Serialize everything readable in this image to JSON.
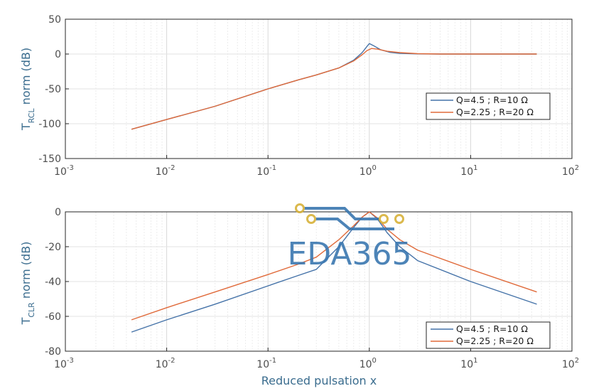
{
  "watermark": {
    "text": "EDA365"
  },
  "chart_data": [
    {
      "type": "line",
      "xscale": "log",
      "xlim": [
        0.001,
        100
      ],
      "ylim": [
        -150,
        50
      ],
      "ylabel": {
        "main": "T",
        "sub": "RCL",
        "rest": " norm (dB)"
      },
      "xlabel": "",
      "grid": true,
      "legend": "right",
      "yticks": [
        "50",
        "0",
        "-50",
        "-100",
        "-150"
      ],
      "xticks": [
        {
          "base": "10",
          "exp": "-3"
        },
        {
          "base": "10",
          "exp": "-2"
        },
        {
          "base": "10",
          "exp": "-1"
        },
        {
          "base": "10",
          "exp": "0"
        },
        {
          "base": "10",
          "exp": "1"
        },
        {
          "base": "10",
          "exp": "2"
        }
      ],
      "series": [
        {
          "name": "Q=4.5 ; R=10 Ω",
          "color": "#4472a8",
          "points": [
            [
              0.0045,
              -108
            ],
            [
              0.01,
              -94
            ],
            [
              0.03,
              -75
            ],
            [
              0.1,
              -50
            ],
            [
              0.2,
              -37
            ],
            [
              0.3,
              -30
            ],
            [
              0.5,
              -20
            ],
            [
              0.7,
              -9
            ],
            [
              0.85,
              2
            ],
            [
              0.95,
              11
            ],
            [
              1.0,
              15
            ],
            [
              1.1,
              12
            ],
            [
              1.3,
              6
            ],
            [
              1.6,
              2.5
            ],
            [
              2,
              1
            ],
            [
              3,
              0.2
            ],
            [
              5,
              0
            ],
            [
              10,
              0
            ],
            [
              45,
              0
            ]
          ]
        },
        {
          "name": "Q=2.25 ; R=20 Ω",
          "color": "#e06a3a",
          "points": [
            [
              0.0045,
              -108
            ],
            [
              0.01,
              -94
            ],
            [
              0.03,
              -75
            ],
            [
              0.1,
              -50
            ],
            [
              0.2,
              -37
            ],
            [
              0.3,
              -30
            ],
            [
              0.5,
              -20
            ],
            [
              0.7,
              -10
            ],
            [
              0.85,
              -1
            ],
            [
              0.95,
              5
            ],
            [
              1.05,
              8
            ],
            [
              1.2,
              7
            ],
            [
              1.5,
              4
            ],
            [
              2,
              2
            ],
            [
              3,
              0.5
            ],
            [
              5,
              0
            ],
            [
              10,
              0
            ],
            [
              45,
              0
            ]
          ]
        }
      ]
    },
    {
      "type": "line",
      "xscale": "log",
      "xlim": [
        0.001,
        100
      ],
      "ylim": [
        -80,
        0
      ],
      "ylabel": {
        "main": "T",
        "sub": "CLR",
        "rest": " norm (dB)"
      },
      "xlabel": "Reduced pulsation x",
      "grid": true,
      "legend": "bottom-right",
      "yticks": [
        "0",
        "-20",
        "-40",
        "-60",
        "-80"
      ],
      "xticks": [
        {
          "base": "10",
          "exp": "-3"
        },
        {
          "base": "10",
          "exp": "-2"
        },
        {
          "base": "10",
          "exp": "-1"
        },
        {
          "base": "10",
          "exp": "0"
        },
        {
          "base": "10",
          "exp": "1"
        },
        {
          "base": "10",
          "exp": "2"
        }
      ],
      "series": [
        {
          "name": "Q=4.5 ; R=10 Ω",
          "color": "#4472a8",
          "points": [
            [
              0.0045,
              -69
            ],
            [
              0.01,
              -62
            ],
            [
              0.03,
              -53
            ],
            [
              0.1,
              -42.5
            ],
            [
              0.2,
              -36.5
            ],
            [
              0.3,
              -33
            ],
            [
              0.5,
              -20
            ],
            [
              0.7,
              -9
            ],
            [
              0.85,
              -3
            ],
            [
              1.0,
              0
            ],
            [
              1.2,
              -4
            ],
            [
              1.5,
              -12
            ],
            [
              2,
              -20
            ],
            [
              3,
              -28
            ],
            [
              10,
              -40
            ],
            [
              45,
              -53
            ]
          ]
        },
        {
          "name": "Q=2.25 ; R=20 Ω",
          "color": "#e06a3a",
          "points": [
            [
              0.0045,
              -62
            ],
            [
              0.01,
              -55
            ],
            [
              0.03,
              -46
            ],
            [
              0.1,
              -36
            ],
            [
              0.2,
              -30
            ],
            [
              0.3,
              -26
            ],
            [
              0.5,
              -16
            ],
            [
              0.7,
              -8
            ],
            [
              0.85,
              -3
            ],
            [
              1.0,
              0
            ],
            [
              1.2,
              -3.5
            ],
            [
              1.5,
              -10
            ],
            [
              2,
              -16
            ],
            [
              3,
              -22
            ],
            [
              10,
              -33
            ],
            [
              45,
              -46
            ]
          ]
        }
      ]
    }
  ]
}
